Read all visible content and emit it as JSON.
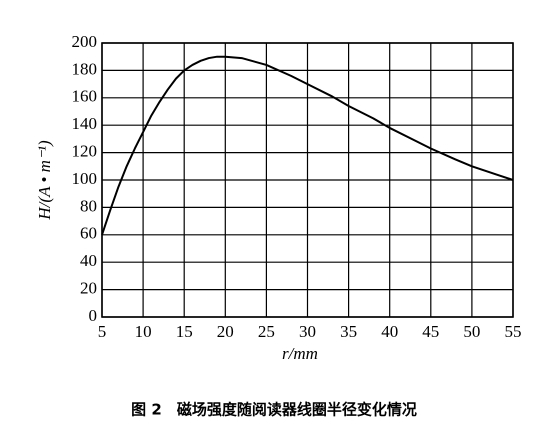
{
  "chart_data": {
    "type": "line",
    "x_label": "r/mm",
    "y_label": "H/(A • m⁻¹)",
    "caption": "图 2　磁场强度随阅读器线圈半径变化情况",
    "x": [
      5,
      6,
      7,
      8,
      9,
      10,
      11,
      12,
      13,
      14,
      15,
      16,
      17,
      18,
      19,
      20,
      22,
      25,
      28,
      30,
      33,
      35,
      38,
      40,
      43,
      45,
      48,
      50,
      53,
      55
    ],
    "series": [
      {
        "color": "#000000",
        "values": [
          60,
          78,
          95,
          110,
          123,
          135,
          147,
          157,
          166,
          174,
          180,
          184,
          187,
          189,
          190,
          190,
          189,
          184,
          176,
          170,
          161,
          154,
          145,
          138,
          129,
          123,
          115,
          110,
          104,
          100
        ]
      }
    ],
    "xlim": [
      5,
      55
    ],
    "ylim": [
      0,
      200
    ],
    "xticks": [
      5,
      10,
      15,
      20,
      25,
      30,
      35,
      40,
      45,
      50,
      55
    ],
    "yticks": [
      0,
      20,
      40,
      60,
      80,
      100,
      120,
      140,
      160,
      180,
      200
    ],
    "grid": true
  }
}
